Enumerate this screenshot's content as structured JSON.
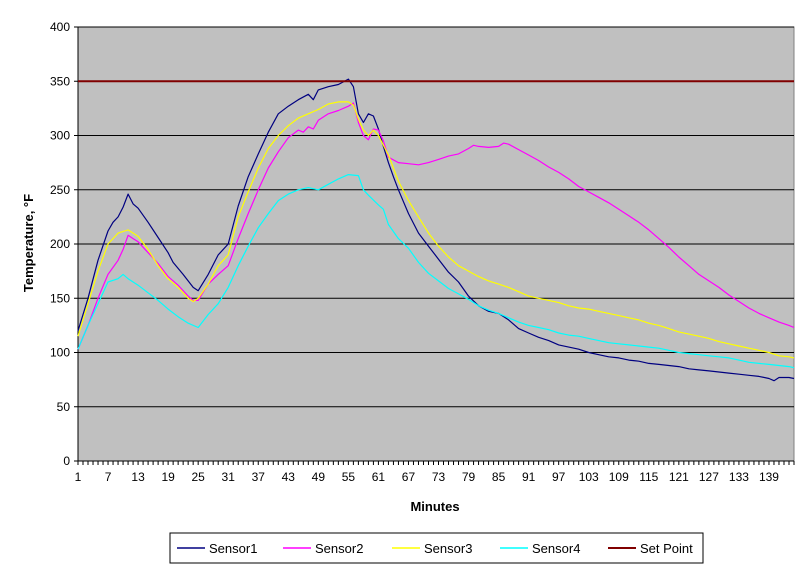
{
  "chart_data": {
    "type": "line",
    "title": "",
    "xlabel": "Minutes",
    "ylabel": "Temperature, °F",
    "xlim": [
      1,
      144
    ],
    "ylim": [
      0,
      400
    ],
    "y_ticks": [
      "0",
      "50",
      "100",
      "150",
      "200",
      "250",
      "300",
      "350",
      "400"
    ],
    "x_ticks": [
      "1",
      "7",
      "13",
      "19",
      "25",
      "31",
      "37",
      "43",
      "49",
      "55",
      "61",
      "67",
      "73",
      "79",
      "85",
      "91",
      "97",
      "103",
      "109",
      "115",
      "121",
      "127",
      "133",
      "139"
    ],
    "grid": "horizontal",
    "legend_position": "bottom",
    "plot_background": "#c0c0c0",
    "series": [
      {
        "name": "Sensor1",
        "color": "#000080",
        "points": [
          [
            1,
            120
          ],
          [
            3,
            150
          ],
          [
            5,
            185
          ],
          [
            7,
            212
          ],
          [
            8,
            220
          ],
          [
            9,
            225
          ],
          [
            10,
            234
          ],
          [
            11,
            246
          ],
          [
            12,
            237
          ],
          [
            13,
            233
          ],
          [
            15,
            220
          ],
          [
            17,
            206
          ],
          [
            19,
            192
          ],
          [
            20,
            183
          ],
          [
            22,
            172
          ],
          [
            24,
            160
          ],
          [
            25,
            157
          ],
          [
            27,
            172
          ],
          [
            29,
            190
          ],
          [
            31,
            200
          ],
          [
            33,
            235
          ],
          [
            35,
            262
          ],
          [
            37,
            283
          ],
          [
            39,
            303
          ],
          [
            41,
            320
          ],
          [
            43,
            327
          ],
          [
            45,
            333
          ],
          [
            47,
            338
          ],
          [
            48,
            333
          ],
          [
            49,
            342
          ],
          [
            51,
            345
          ],
          [
            53,
            347
          ],
          [
            55,
            352
          ],
          [
            56,
            345
          ],
          [
            57,
            320
          ],
          [
            58,
            312
          ],
          [
            59,
            320
          ],
          [
            60,
            318
          ],
          [
            61,
            306
          ],
          [
            62,
            290
          ],
          [
            63,
            275
          ],
          [
            64,
            262
          ],
          [
            65,
            250
          ],
          [
            67,
            228
          ],
          [
            69,
            210
          ],
          [
            71,
            198
          ],
          [
            73,
            186
          ],
          [
            75,
            174
          ],
          [
            77,
            165
          ],
          [
            79,
            152
          ],
          [
            81,
            143
          ],
          [
            83,
            138
          ],
          [
            85,
            136
          ],
          [
            87,
            130
          ],
          [
            89,
            122
          ],
          [
            91,
            118
          ],
          [
            93,
            114
          ],
          [
            95,
            111
          ],
          [
            97,
            107
          ],
          [
            99,
            105
          ],
          [
            101,
            103
          ],
          [
            103,
            100
          ],
          [
            105,
            98
          ],
          [
            107,
            96
          ],
          [
            109,
            95
          ],
          [
            111,
            93
          ],
          [
            113,
            92
          ],
          [
            115,
            90
          ],
          [
            117,
            89
          ],
          [
            119,
            88
          ],
          [
            121,
            87
          ],
          [
            123,
            85
          ],
          [
            125,
            84
          ],
          [
            127,
            83
          ],
          [
            129,
            82
          ],
          [
            131,
            81
          ],
          [
            133,
            80
          ],
          [
            135,
            79
          ],
          [
            137,
            78
          ],
          [
            139,
            76
          ],
          [
            140,
            74
          ],
          [
            141,
            77
          ],
          [
            143,
            77
          ],
          [
            144,
            76
          ]
        ]
      },
      {
        "name": "Sensor2",
        "color": "#ff00ff",
        "points": [
          [
            1,
            103
          ],
          [
            3,
            125
          ],
          [
            5,
            150
          ],
          [
            7,
            172
          ],
          [
            9,
            185
          ],
          [
            10,
            195
          ],
          [
            11,
            208
          ],
          [
            12,
            205
          ],
          [
            13,
            202
          ],
          [
            15,
            192
          ],
          [
            17,
            182
          ],
          [
            19,
            170
          ],
          [
            21,
            162
          ],
          [
            23,
            152
          ],
          [
            24,
            148
          ],
          [
            25,
            148
          ],
          [
            27,
            163
          ],
          [
            29,
            172
          ],
          [
            31,
            180
          ],
          [
            33,
            205
          ],
          [
            35,
            228
          ],
          [
            37,
            250
          ],
          [
            39,
            270
          ],
          [
            41,
            285
          ],
          [
            43,
            298
          ],
          [
            45,
            305
          ],
          [
            46,
            303
          ],
          [
            47,
            308
          ],
          [
            48,
            306
          ],
          [
            49,
            314
          ],
          [
            51,
            320
          ],
          [
            53,
            323
          ],
          [
            55,
            327
          ],
          [
            56,
            330
          ],
          [
            57,
            312
          ],
          [
            58,
            300
          ],
          [
            59,
            296
          ],
          [
            60,
            306
          ],
          [
            61,
            305
          ],
          [
            62,
            295
          ],
          [
            63,
            280
          ],
          [
            65,
            275
          ],
          [
            67,
            274
          ],
          [
            69,
            273
          ],
          [
            71,
            275
          ],
          [
            73,
            278
          ],
          [
            75,
            281
          ],
          [
            77,
            283
          ],
          [
            79,
            288
          ],
          [
            80,
            291
          ],
          [
            81,
            290
          ],
          [
            83,
            289
          ],
          [
            85,
            290
          ],
          [
            86,
            293
          ],
          [
            87,
            292
          ],
          [
            89,
            287
          ],
          [
            91,
            282
          ],
          [
            93,
            277
          ],
          [
            95,
            271
          ],
          [
            97,
            266
          ],
          [
            99,
            260
          ],
          [
            101,
            253
          ],
          [
            103,
            248
          ],
          [
            105,
            243
          ],
          [
            107,
            238
          ],
          [
            109,
            232
          ],
          [
            111,
            226
          ],
          [
            113,
            220
          ],
          [
            115,
            213
          ],
          [
            117,
            205
          ],
          [
            119,
            197
          ],
          [
            121,
            188
          ],
          [
            123,
            180
          ],
          [
            125,
            172
          ],
          [
            127,
            166
          ],
          [
            129,
            160
          ],
          [
            131,
            153
          ],
          [
            133,
            147
          ],
          [
            135,
            141
          ],
          [
            137,
            136
          ],
          [
            139,
            132
          ],
          [
            141,
            128
          ],
          [
            143,
            125
          ],
          [
            144,
            123
          ]
        ]
      },
      {
        "name": "Sensor3",
        "color": "#ffff00",
        "points": [
          [
            1,
            115
          ],
          [
            3,
            145
          ],
          [
            5,
            175
          ],
          [
            7,
            200
          ],
          [
            9,
            210
          ],
          [
            11,
            213
          ],
          [
            13,
            207
          ],
          [
            15,
            195
          ],
          [
            17,
            180
          ],
          [
            19,
            168
          ],
          [
            21,
            160
          ],
          [
            23,
            150
          ],
          [
            24,
            147
          ],
          [
            25,
            150
          ],
          [
            27,
            163
          ],
          [
            29,
            180
          ],
          [
            31,
            190
          ],
          [
            33,
            225
          ],
          [
            35,
            248
          ],
          [
            37,
            270
          ],
          [
            39,
            288
          ],
          [
            41,
            300
          ],
          [
            43,
            309
          ],
          [
            45,
            316
          ],
          [
            47,
            320
          ],
          [
            49,
            324
          ],
          [
            51,
            329
          ],
          [
            53,
            331
          ],
          [
            55,
            331
          ],
          [
            56,
            328
          ],
          [
            57,
            315
          ],
          [
            58,
            305
          ],
          [
            59,
            300
          ],
          [
            60,
            305
          ],
          [
            61,
            300
          ],
          [
            63,
            282
          ],
          [
            65,
            258
          ],
          [
            67,
            240
          ],
          [
            69,
            225
          ],
          [
            71,
            210
          ],
          [
            73,
            198
          ],
          [
            75,
            188
          ],
          [
            77,
            180
          ],
          [
            79,
            175
          ],
          [
            81,
            170
          ],
          [
            83,
            166
          ],
          [
            85,
            163
          ],
          [
            87,
            160
          ],
          [
            89,
            156
          ],
          [
            91,
            152
          ],
          [
            93,
            150
          ],
          [
            95,
            148
          ],
          [
            97,
            146
          ],
          [
            99,
            143
          ],
          [
            101,
            141
          ],
          [
            103,
            140
          ],
          [
            105,
            138
          ],
          [
            107,
            136
          ],
          [
            109,
            134
          ],
          [
            111,
            132
          ],
          [
            113,
            130
          ],
          [
            115,
            127
          ],
          [
            117,
            125
          ],
          [
            119,
            122
          ],
          [
            121,
            119
          ],
          [
            123,
            117
          ],
          [
            125,
            115
          ],
          [
            127,
            113
          ],
          [
            129,
            110
          ],
          [
            131,
            108
          ],
          [
            133,
            106
          ],
          [
            135,
            104
          ],
          [
            137,
            102
          ],
          [
            139,
            100
          ],
          [
            141,
            97
          ],
          [
            143,
            96
          ],
          [
            144,
            95
          ]
        ]
      },
      {
        "name": "Sensor4",
        "color": "#00ffff",
        "points": [
          [
            1,
            103
          ],
          [
            3,
            125
          ],
          [
            5,
            145
          ],
          [
            7,
            165
          ],
          [
            9,
            168
          ],
          [
            10,
            172
          ],
          [
            11,
            168
          ],
          [
            13,
            162
          ],
          [
            15,
            155
          ],
          [
            17,
            148
          ],
          [
            19,
            140
          ],
          [
            21,
            133
          ],
          [
            23,
            127
          ],
          [
            25,
            123
          ],
          [
            27,
            135
          ],
          [
            29,
            145
          ],
          [
            31,
            160
          ],
          [
            33,
            180
          ],
          [
            35,
            198
          ],
          [
            37,
            215
          ],
          [
            39,
            228
          ],
          [
            41,
            240
          ],
          [
            43,
            246
          ],
          [
            45,
            250
          ],
          [
            47,
            252
          ],
          [
            49,
            250
          ],
          [
            51,
            255
          ],
          [
            53,
            260
          ],
          [
            55,
            264
          ],
          [
            57,
            263
          ],
          [
            58,
            250
          ],
          [
            59,
            245
          ],
          [
            61,
            236
          ],
          [
            62,
            232
          ],
          [
            63,
            218
          ],
          [
            65,
            205
          ],
          [
            67,
            196
          ],
          [
            69,
            183
          ],
          [
            71,
            173
          ],
          [
            73,
            166
          ],
          [
            75,
            159
          ],
          [
            77,
            154
          ],
          [
            79,
            149
          ],
          [
            81,
            143
          ],
          [
            83,
            139
          ],
          [
            85,
            136
          ],
          [
            87,
            132
          ],
          [
            89,
            128
          ],
          [
            91,
            125
          ],
          [
            93,
            123
          ],
          [
            95,
            121
          ],
          [
            97,
            118
          ],
          [
            99,
            116
          ],
          [
            101,
            115
          ],
          [
            103,
            113
          ],
          [
            105,
            111
          ],
          [
            107,
            109
          ],
          [
            109,
            108
          ],
          [
            111,
            107
          ],
          [
            113,
            106
          ],
          [
            115,
            105
          ],
          [
            117,
            104
          ],
          [
            119,
            102
          ],
          [
            121,
            100
          ],
          [
            123,
            99
          ],
          [
            125,
            98
          ],
          [
            127,
            97
          ],
          [
            129,
            96
          ],
          [
            131,
            95
          ],
          [
            133,
            93
          ],
          [
            135,
            91
          ],
          [
            137,
            90
          ],
          [
            139,
            89
          ],
          [
            141,
            88
          ],
          [
            143,
            87
          ],
          [
            144,
            86
          ]
        ]
      },
      {
        "name": "Set Point",
        "color": "#800000",
        "points": [
          [
            1,
            350
          ],
          [
            144,
            350
          ]
        ]
      }
    ]
  }
}
